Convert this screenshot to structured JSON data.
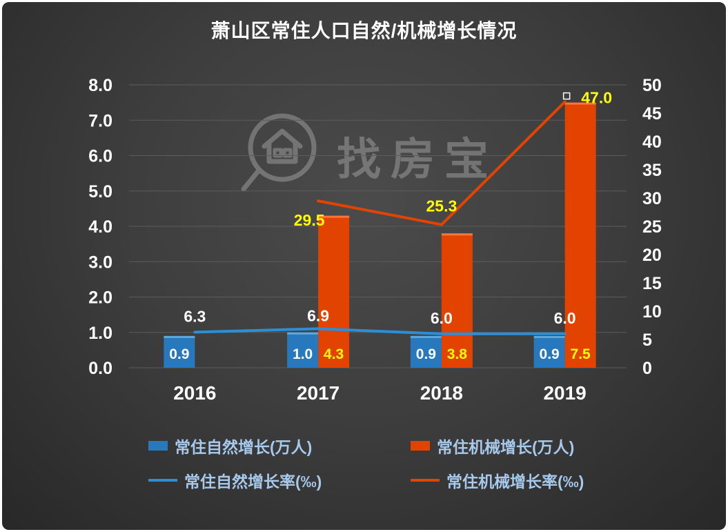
{
  "title": "萧山区常住人口自然/机械增长情况",
  "watermark": {
    "text": "找房宝",
    "icon": "house-magnifier-icon"
  },
  "chart_data": {
    "type": "bar+line combo",
    "title": "萧山区常住人口自然/机械增长情况",
    "categories": [
      "2016",
      "2017",
      "2018",
      "2019"
    ],
    "grid": true,
    "legend_position": "bottom",
    "left_axis": {
      "min": 0,
      "max": 8,
      "ticks": [
        "0.0",
        "1.0",
        "2.0",
        "3.0",
        "4.0",
        "5.0",
        "6.0",
        "7.0",
        "8.0"
      ]
    },
    "right_axis": {
      "min": 0,
      "max": 50,
      "tick_step": 5,
      "ticks": [
        "0",
        "5",
        "10",
        "15",
        "20",
        "25",
        "30",
        "35",
        "40",
        "45",
        "50"
      ]
    },
    "series": [
      {
        "name": "常住自然增长(万人)",
        "type": "bar",
        "axis": "left",
        "color": "#2878BE",
        "top_color": "#5FA8DC",
        "values": [
          0.9,
          1.0,
          0.9,
          0.9
        ],
        "labels": [
          "0.9",
          "1.0",
          "0.9",
          "0.9"
        ],
        "label_color": "#FFFFFF"
      },
      {
        "name": "常住机械增长(万人)",
        "type": "bar",
        "axis": "left",
        "color": "#E24400",
        "top_color": "#FF7438",
        "values": [
          null,
          4.3,
          3.8,
          7.5
        ],
        "labels": [
          "",
          "4.3",
          "3.8",
          "7.5"
        ],
        "label_color": "#FFFF00"
      },
      {
        "name": "常住自然增长率(‰)",
        "type": "line",
        "axis": "right",
        "color": "#2B8FD8",
        "values": [
          6.3,
          6.9,
          6.0,
          6.0
        ],
        "labels": [
          "6.3",
          "6.9",
          "6.0",
          "6.0"
        ],
        "label_color": "#FFFFFF"
      },
      {
        "name": "常住机械增长率(‰)",
        "type": "line",
        "axis": "right",
        "color": "#E24400",
        "values": [
          null,
          29.5,
          25.3,
          47.0
        ],
        "labels": [
          "",
          "29.5",
          "25.3",
          "47.0"
        ],
        "label_color": "#FFFF00"
      }
    ]
  },
  "legend": {
    "items": [
      {
        "label": "常住自然增长(万人)",
        "swatch": "bar",
        "color": "#2878BE"
      },
      {
        "label": "常住机械增长(万人)",
        "swatch": "bar",
        "color": "#E24400"
      },
      {
        "label": "常住自然增长率(‰)",
        "swatch": "line",
        "color": "#2B8FD8"
      },
      {
        "label": "常住机械增长率(‰)",
        "swatch": "line",
        "color": "#E24400"
      }
    ]
  },
  "colors": {
    "background_center": "#4b4b4b",
    "background_edge": "#282828",
    "gridline": "#5c5c5c",
    "axis_text": "#ffffff",
    "label_yellow": "#FFFF00",
    "legend_text": "#a6c9ec",
    "watermark": "#9b9b9b"
  }
}
